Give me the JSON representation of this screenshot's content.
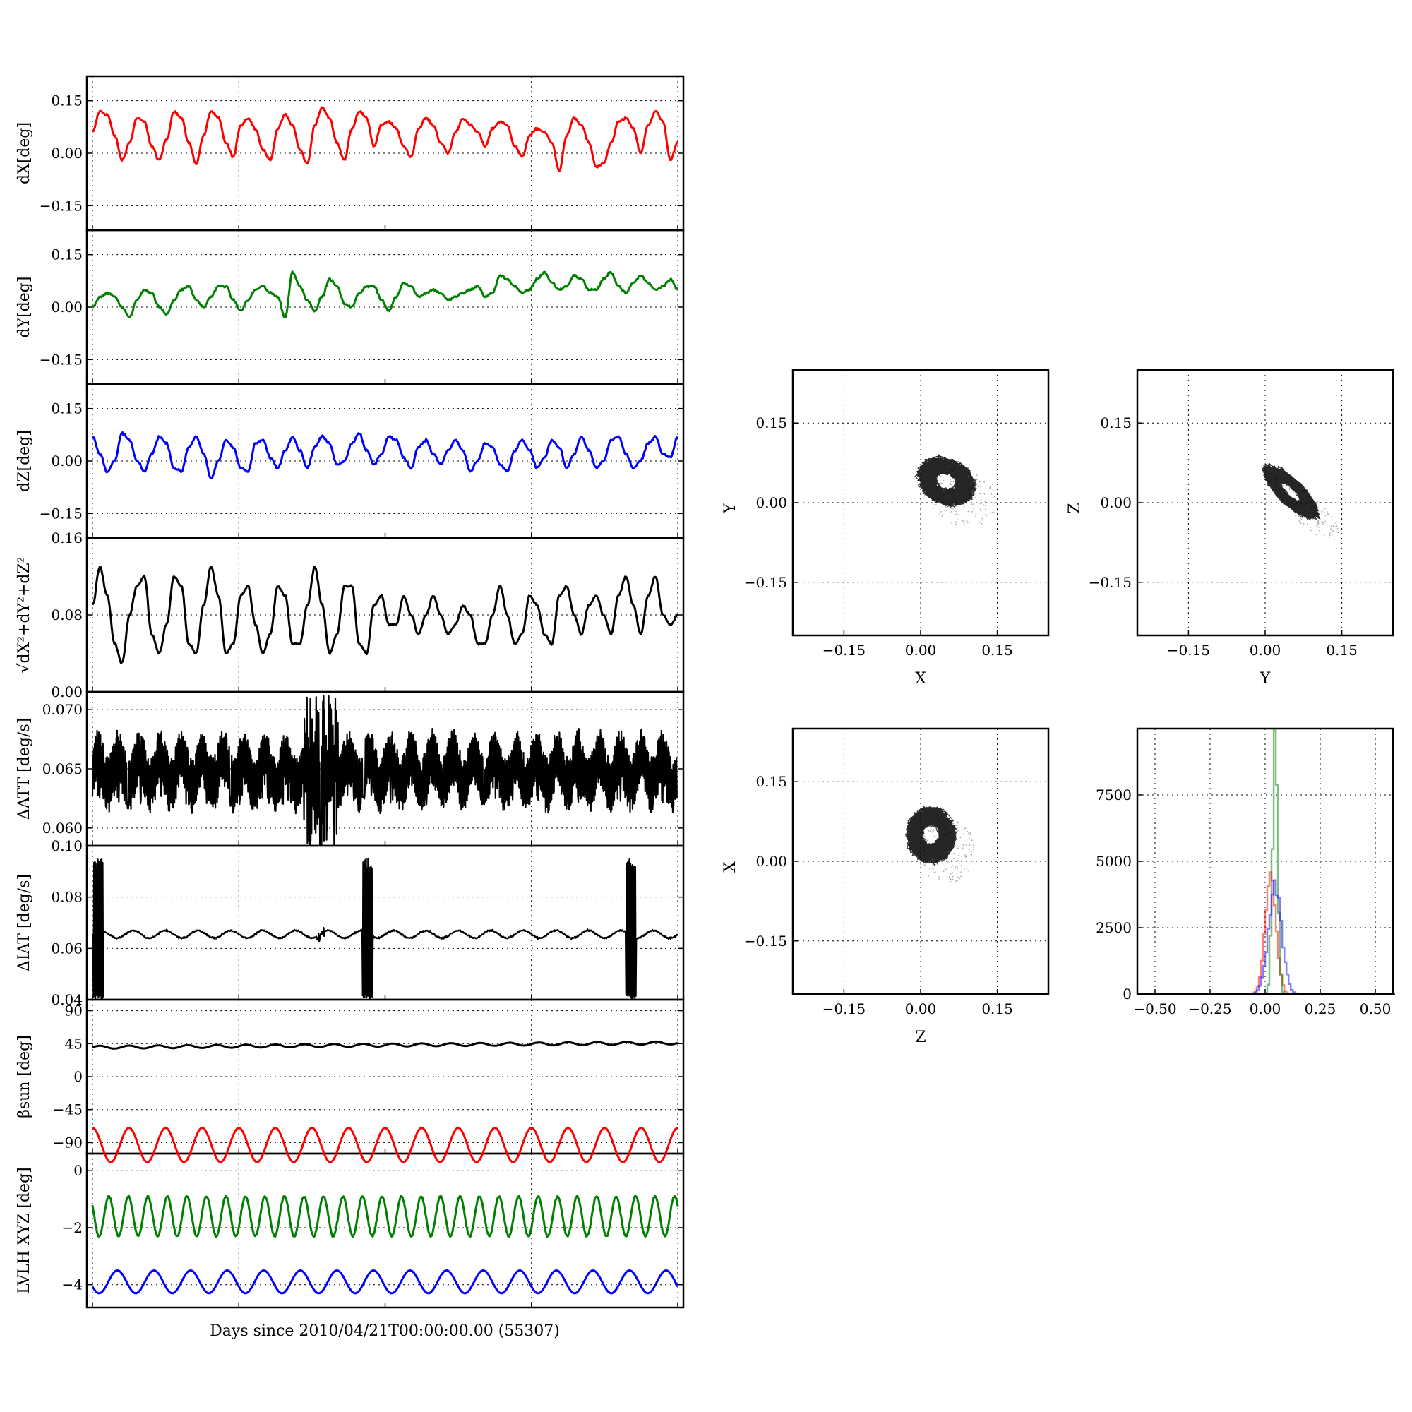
{
  "xlabel": "Days since 2010/04/21T00:00:00.00 (55307)",
  "colors": {
    "red": "#ff0000",
    "green": "#008000",
    "blue": "#0000ff",
    "black": "#000000"
  },
  "chart_data": [
    {
      "id": "dx",
      "type": "line",
      "ylabel": "dX[deg]",
      "yticks": [
        "0.15",
        "0.00",
        "−0.15"
      ],
      "ytick_values": [
        0.15,
        0.0,
        -0.15
      ],
      "ylim": [
        -0.22,
        0.22
      ],
      "series": [
        {
          "color": "#ff0000",
          "baseline": 0.04,
          "amplitude": 0.05,
          "cycles": 16,
          "noise": 0.012,
          "values": [
            0.06,
            0.12,
            0.11,
            0.05,
            -0.02,
            0.03,
            0.1,
            0.09,
            0.02,
            -0.02,
            0.04,
            0.12,
            0.1,
            0.03,
            -0.03,
            0.05,
            0.12,
            0.1,
            0.03,
            -0.01,
            0.08,
            0.1,
            0.07,
            0.01,
            -0.02,
            0.07,
            0.11,
            0.08,
            0.01,
            -0.03,
            0.08,
            0.13,
            0.1,
            0.03,
            -0.02,
            0.07,
            0.12,
            0.1,
            0.02,
            0.08,
            0.09,
            0.07,
            0.02,
            -0.01,
            0.07,
            0.1,
            0.08,
            0.03,
            0.0,
            0.06,
            0.1,
            0.08,
            0.06,
            0.02,
            0.07,
            0.09,
            0.08,
            0.02,
            -0.01,
            0.05,
            0.07,
            0.06,
            0.03,
            -0.05,
            0.05,
            0.1,
            0.08,
            0.03,
            -0.04,
            -0.03,
            0.03,
            0.09,
            0.1,
            0.07,
            0.0,
            0.08,
            0.12,
            0.09,
            -0.02,
            0.03
          ]
        }
      ]
    },
    {
      "id": "dy",
      "type": "line",
      "ylabel": "dY[deg]",
      "yticks": [
        "0.15",
        "0.00",
        "−0.15"
      ],
      "ytick_values": [
        0.15,
        0.0,
        -0.15
      ],
      "ylim": [
        -0.22,
        0.22
      ],
      "series": [
        {
          "color": "#008000",
          "values": [
            0.0,
            0.03,
            0.04,
            0.03,
            0.0,
            -0.03,
            0.02,
            0.05,
            0.04,
            0.0,
            -0.02,
            0.02,
            0.05,
            0.06,
            0.02,
            0.0,
            0.03,
            0.06,
            0.06,
            0.02,
            -0.01,
            0.02,
            0.05,
            0.06,
            0.04,
            0.03,
            -0.03,
            0.1,
            0.06,
            0.02,
            -0.01,
            0.03,
            0.08,
            0.06,
            0.01,
            0.0,
            0.04,
            0.06,
            0.06,
            0.02,
            -0.01,
            0.03,
            0.07,
            0.06,
            0.03,
            0.04,
            0.05,
            0.04,
            0.02,
            0.03,
            0.04,
            0.05,
            0.06,
            0.03,
            0.04,
            0.09,
            0.08,
            0.06,
            0.04,
            0.05,
            0.08,
            0.1,
            0.07,
            0.05,
            0.06,
            0.09,
            0.08,
            0.05,
            0.05,
            0.08,
            0.1,
            0.06,
            0.04,
            0.07,
            0.09,
            0.07,
            0.05,
            0.06,
            0.08,
            0.05
          ]
        }
      ]
    },
    {
      "id": "dz",
      "type": "line",
      "ylabel": "dZ[deg]",
      "yticks": [
        "0.15",
        "0.00",
        "−0.15"
      ],
      "ytick_values": [
        0.15,
        0.0,
        -0.15
      ],
      "ylim": [
        -0.22,
        0.22
      ],
      "series": [
        {
          "color": "#0000ff",
          "values": [
            0.07,
            0.02,
            -0.03,
            0.0,
            0.08,
            0.06,
            0.0,
            -0.03,
            0.02,
            0.07,
            0.05,
            -0.02,
            -0.03,
            0.04,
            0.07,
            0.02,
            -0.05,
            0.0,
            0.06,
            0.04,
            -0.02,
            -0.03,
            0.05,
            0.06,
            0.01,
            -0.02,
            0.03,
            0.07,
            0.03,
            -0.02,
            0.04,
            0.07,
            0.05,
            -0.01,
            0.0,
            0.05,
            0.08,
            0.03,
            -0.01,
            0.02,
            0.07,
            0.06,
            0.01,
            -0.02,
            0.04,
            0.06,
            0.02,
            -0.01,
            0.03,
            0.06,
            0.03,
            -0.03,
            0.0,
            0.05,
            0.04,
            -0.01,
            -0.03,
            0.03,
            0.06,
            0.03,
            -0.02,
            0.01,
            0.06,
            0.04,
            -0.02,
            0.02,
            0.07,
            0.03,
            -0.02,
            0.0,
            0.06,
            0.07,
            0.02,
            -0.02,
            0.0,
            0.05,
            0.07,
            0.02,
            0.01,
            0.07
          ]
        }
      ]
    },
    {
      "id": "mag",
      "type": "line",
      "ylabel": "√dX²+dY²+dZ²",
      "yticks": [
        "0.16",
        "0.08",
        "0.00"
      ],
      "ytick_values": [
        0.16,
        0.08,
        0.0
      ],
      "ylim": [
        0.0,
        0.16
      ],
      "series": [
        {
          "color": "#000000",
          "values": [
            0.09,
            0.13,
            0.1,
            0.05,
            0.03,
            0.08,
            0.11,
            0.12,
            0.06,
            0.04,
            0.07,
            0.12,
            0.11,
            0.05,
            0.04,
            0.09,
            0.13,
            0.1,
            0.04,
            0.05,
            0.1,
            0.11,
            0.07,
            0.04,
            0.06,
            0.11,
            0.1,
            0.05,
            0.05,
            0.09,
            0.13,
            0.09,
            0.04,
            0.06,
            0.11,
            0.11,
            0.05,
            0.04,
            0.09,
            0.1,
            0.07,
            0.07,
            0.1,
            0.08,
            0.06,
            0.08,
            0.1,
            0.08,
            0.06,
            0.07,
            0.09,
            0.08,
            0.05,
            0.05,
            0.08,
            0.11,
            0.08,
            0.05,
            0.06,
            0.1,
            0.09,
            0.06,
            0.05,
            0.1,
            0.11,
            0.08,
            0.06,
            0.09,
            0.1,
            0.08,
            0.06,
            0.1,
            0.12,
            0.09,
            0.06,
            0.1,
            0.12,
            0.08,
            0.07,
            0.08
          ]
        }
      ]
    },
    {
      "id": "datt",
      "type": "line",
      "ylabel": "ΔATT [deg/s]",
      "yticks": [
        "0.070",
        "0.065",
        "0.060"
      ],
      "ytick_values": [
        0.07,
        0.065,
        0.06
      ],
      "ylim": [
        0.0585,
        0.0715
      ],
      "series": [
        {
          "color": "#000000",
          "center": 0.0648,
          "low": 0.062,
          "high": 0.0672,
          "peaks": 28,
          "spike_day_fraction": 0.39,
          "spike_low": 0.0585,
          "spike_high": 0.0712
        }
      ]
    },
    {
      "id": "diat",
      "type": "line",
      "ylabel": "ΔIAT [deg/s]",
      "yticks": [
        "0.10",
        "0.08",
        "0.06",
        "0.04"
      ],
      "ytick_values": [
        0.1,
        0.08,
        0.06,
        0.04
      ],
      "ylim": [
        0.04,
        0.1
      ],
      "series": [
        {
          "color": "#000000",
          "center": 0.0655,
          "ripple": 0.0015,
          "peaks": 18,
          "bursts": [
            0.01,
            0.47,
            0.92
          ],
          "burst_low": 0.04,
          "burst_high": 0.095
        }
      ]
    },
    {
      "id": "beta",
      "type": "line",
      "ylabel": "βsun [deg]",
      "yticks": [
        "90",
        "45",
        "0",
        "−45",
        "−90"
      ],
      "ytick_values": [
        90,
        45,
        0,
        -45,
        -90
      ],
      "ylim": [
        -105,
        105
      ],
      "series": [
        {
          "color": "#000000",
          "start": 40,
          "end": 46,
          "ripple": 2,
          "cycles": 20
        }
      ]
    },
    {
      "id": "lvlh",
      "type": "line",
      "ylabel": "LVLH XYZ [deg]",
      "yticks": [
        "0",
        "−2",
        "−4"
      ],
      "ytick_values": [
        0,
        -2,
        -4
      ],
      "ylim": [
        -4.8,
        0.6
      ],
      "series": [
        {
          "color": "#ff0000",
          "center": 0.9,
          "amplitude": 0.6,
          "cycles": 16
        },
        {
          "color": "#008000",
          "center": -1.6,
          "amplitude": 0.7,
          "cycles": 30
        },
        {
          "color": "#0000ff",
          "center": -3.9,
          "amplitude": 0.4,
          "cycles": 16
        }
      ]
    },
    {
      "id": "xy",
      "type": "scatter",
      "xlabel": "X",
      "ylabel": "Y",
      "xticks": [
        "−0.15",
        "0.00",
        "0.15"
      ],
      "xtick_values": [
        -0.15,
        0.0,
        0.15
      ],
      "yticks": [
        "0.15",
        "0.00",
        "−0.15"
      ],
      "ytick_values": [
        0.15,
        0.0,
        -0.15
      ],
      "xlim": [
        -0.25,
        0.25
      ],
      "ylim": [
        -0.25,
        0.25
      ],
      "cloud": {
        "cx": 0.05,
        "cy": 0.04,
        "rx": 0.055,
        "ry": 0.04,
        "tilt": -0.4,
        "color": "#000000"
      }
    },
    {
      "id": "yz",
      "type": "scatter",
      "xlabel": "Y",
      "ylabel": "Z",
      "xticks": [
        "−0.15",
        "0.00",
        "0.15"
      ],
      "xtick_values": [
        -0.15,
        0.0,
        0.15
      ],
      "yticks": [
        "0.15",
        "0.00",
        "−0.15"
      ],
      "ytick_values": [
        0.15,
        0.0,
        -0.15
      ],
      "xlim": [
        -0.25,
        0.25
      ],
      "ylim": [
        -0.25,
        0.25
      ],
      "cloud": {
        "cx": 0.05,
        "cy": 0.02,
        "rx": 0.065,
        "ry": 0.022,
        "tilt": -0.75,
        "color": "#000000"
      }
    },
    {
      "id": "zx",
      "type": "scatter",
      "xlabel": "Z",
      "ylabel": "X",
      "xticks": [
        "−0.15",
        "0.00",
        "0.15"
      ],
      "xtick_values": [
        -0.15,
        0.0,
        0.15
      ],
      "yticks": [
        "0.15",
        "0.00",
        "−0.15"
      ],
      "ytick_values": [
        0.15,
        0.0,
        -0.15
      ],
      "xlim": [
        -0.25,
        0.25
      ],
      "ylim": [
        -0.25,
        0.25
      ],
      "cloud": {
        "cx": 0.02,
        "cy": 0.05,
        "rx": 0.045,
        "ry": 0.05,
        "tilt": 0.2,
        "color": "#000000"
      }
    },
    {
      "id": "hist",
      "type": "bar",
      "xticks": [
        "−0.50",
        "−0.25",
        "0.00",
        "0.25",
        "0.50"
      ],
      "xtick_values": [
        -0.5,
        -0.25,
        0.0,
        0.25,
        0.5
      ],
      "yticks": [
        "7500",
        "5000",
        "2500",
        "0"
      ],
      "ytick_values": [
        7500,
        5000,
        2500,
        0
      ],
      "xlim": [
        -0.58,
        0.58
      ],
      "ylim": [
        0,
        10000
      ],
      "series": [
        {
          "color": "#ff0000",
          "peak_x": 0.02,
          "width": 0.025,
          "peak": 4300
        },
        {
          "color": "#008000",
          "peak_x": 0.04,
          "width": 0.012,
          "peak": 9200
        },
        {
          "color": "#0000ff",
          "peak_x": 0.04,
          "width": 0.03,
          "peak": 4200
        }
      ]
    }
  ]
}
